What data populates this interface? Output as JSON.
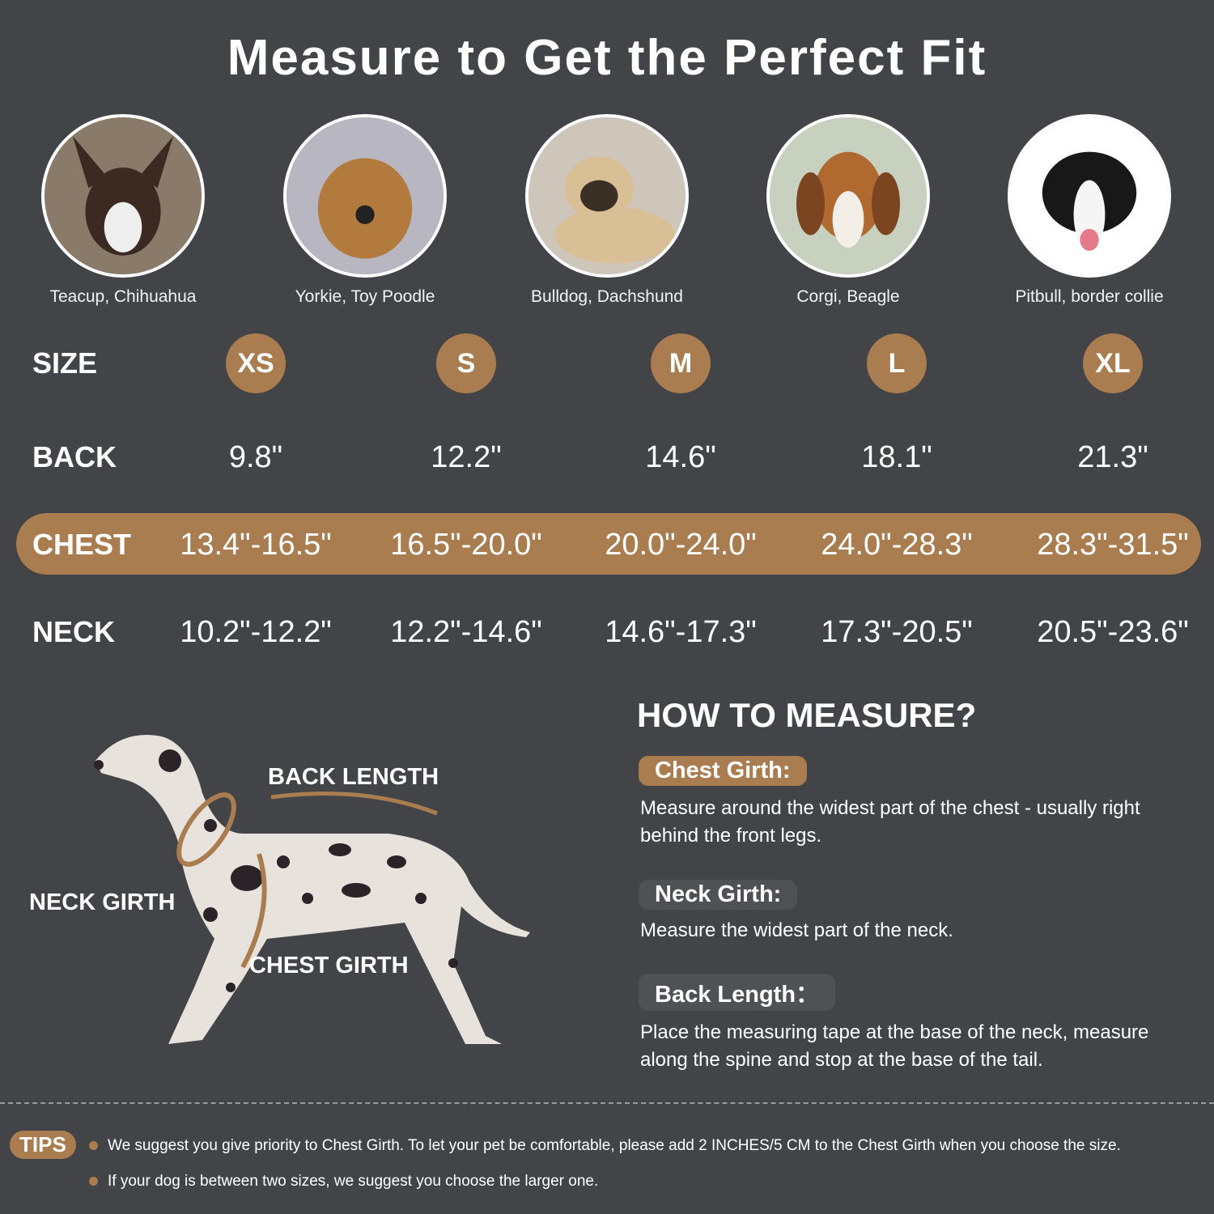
{
  "title": "Measure to Get the Perfect Fit",
  "breeds": [
    "Teacup, Chihuahua",
    "Yorkie, Toy Poodle",
    "Bulldog, Dachshund",
    "Corgi, Beagle",
    "Pitbull, border collie"
  ],
  "rows": {
    "size_label": "SIZE",
    "back_label": "BACK",
    "chest_label": "CHEST",
    "neck_label": "NECK"
  },
  "sizes": [
    "XS",
    "S",
    "M",
    "L",
    "XL"
  ],
  "back": [
    "9.8\"",
    "12.2\"",
    "14.6\"",
    "18.1\"",
    "21.3\""
  ],
  "chest": [
    "13.4\"-16.5\"",
    "16.5\"-20.0\"",
    "20.0\"-24.0\"",
    "24.0\"-28.3\"",
    "28.3\"-31.5\""
  ],
  "neck": [
    "10.2\"-12.2\"",
    "12.2\"-14.6\"",
    "14.6\"-17.3\"",
    "17.3\"-20.5\"",
    "20.5\"-23.6\""
  ],
  "diagram": {
    "back_length": "BACK LENGTH",
    "neck_girth": "NECK GIRTH",
    "chest_girth": "CHEST GIRTH"
  },
  "how": {
    "title": "HOW TO MEASURE?",
    "chest_label": "Chest Girth:",
    "chest_desc": "Measure around the widest part of the chest - usually right behind the front legs.",
    "neck_label": "Neck Girth:",
    "neck_desc": "Measure the widest part of the neck.",
    "back_label": "Back Length：",
    "back_desc": "Place the measuring tape at the base of the neck, measure along the spine and stop at the base of the tail."
  },
  "tips": {
    "label": "TIPS",
    "items": [
      "We suggest you give priority to Chest Girth. To let your pet be comfortable, please add 2 INCHES/5 CM to the Chest Girth when you choose the size.",
      "If your dog is between two sizes, we suggest you choose the larger one."
    ]
  },
  "colors": {
    "background": "#434448",
    "accent": "#a97d4f",
    "secondary_pill": "#505155"
  }
}
